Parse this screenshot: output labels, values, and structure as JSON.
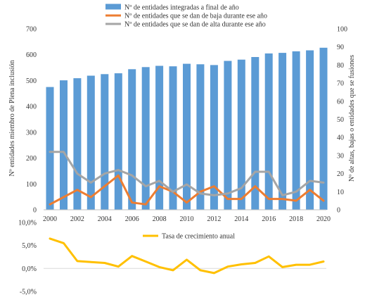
{
  "chart_data": [
    {
      "type": "bar",
      "x": [
        2000,
        2001,
        2002,
        2003,
        2004,
        2005,
        2006,
        2007,
        2008,
        2009,
        2010,
        2011,
        2012,
        2013,
        2014,
        2015,
        2016,
        2017,
        2018,
        2019,
        2020
      ],
      "x_tick_labels": [
        "2000",
        "2002",
        "2004",
        "2006",
        "2008",
        "2010",
        "2012",
        "2014",
        "2016",
        "2018",
        "2020"
      ],
      "ylabel": "Nº entidades miembro de Plena inclusión",
      "y2label": "Nº de altas, bajas o entidades que se fusiones",
      "ylim": [
        0,
        700
      ],
      "y2lim": [
        0,
        100
      ],
      "y_tick_labels": [
        "0",
        "100",
        "200",
        "300",
        "400",
        "500",
        "600",
        "700"
      ],
      "y2_tick_labels": [
        "0",
        "10",
        "20",
        "30",
        "40",
        "50",
        "60",
        "70",
        "80",
        "90",
        "100"
      ],
      "grid": false,
      "legend_position": "top",
      "series": [
        {
          "name": "Nº de entidades integradas a final de año",
          "type": "bar",
          "axis": "left",
          "color": "#5B9BD5",
          "values": [
            475,
            501,
            509,
            519,
            525,
            528,
            544,
            552,
            557,
            555,
            565,
            563,
            560,
            576,
            581,
            591,
            605,
            607,
            613,
            617,
            627
          ]
        },
        {
          "name": "Nº de entidades que se dan de baja durante ese año",
          "type": "line",
          "axis": "right",
          "color": "#ED7D31",
          "values": [
            3,
            7,
            11,
            7,
            13,
            19,
            4,
            3,
            13,
            10,
            4,
            10,
            13,
            6,
            6,
            13,
            6,
            6,
            5,
            11,
            5
          ]
        },
        {
          "name": "Nº de entidades que se dan de alta durante ese año",
          "type": "line",
          "axis": "right",
          "color": "#A5A5A5",
          "values": [
            32,
            32,
            20,
            15,
            20,
            22,
            19,
            13,
            16,
            10,
            14,
            9,
            8,
            9,
            12,
            21,
            21,
            8,
            10,
            16,
            15
          ]
        }
      ]
    },
    {
      "type": "line",
      "x": [
        2000,
        2001,
        2002,
        2003,
        2004,
        2005,
        2006,
        2007,
        2008,
        2009,
        2010,
        2011,
        2012,
        2013,
        2014,
        2015,
        2016,
        2017,
        2018,
        2019,
        2020
      ],
      "ylim": [
        -5.0,
        10.0
      ],
      "y_tick_labels": [
        "-5,0%",
        "0,0%",
        "5,0%",
        "10,0%"
      ],
      "legend_position": "top",
      "series": [
        {
          "name": "Tasa de crecimiento anual",
          "color": "#FFC000",
          "values": [
            6.5,
            5.5,
            1.6,
            1.4,
            1.2,
            0.4,
            2.7,
            1.5,
            0.3,
            -0.4,
            1.9,
            -0.4,
            -1.0,
            0.4,
            0.9,
            1.2,
            2.6,
            0.3,
            0.8,
            0.8,
            1.5
          ]
        }
      ]
    }
  ]
}
